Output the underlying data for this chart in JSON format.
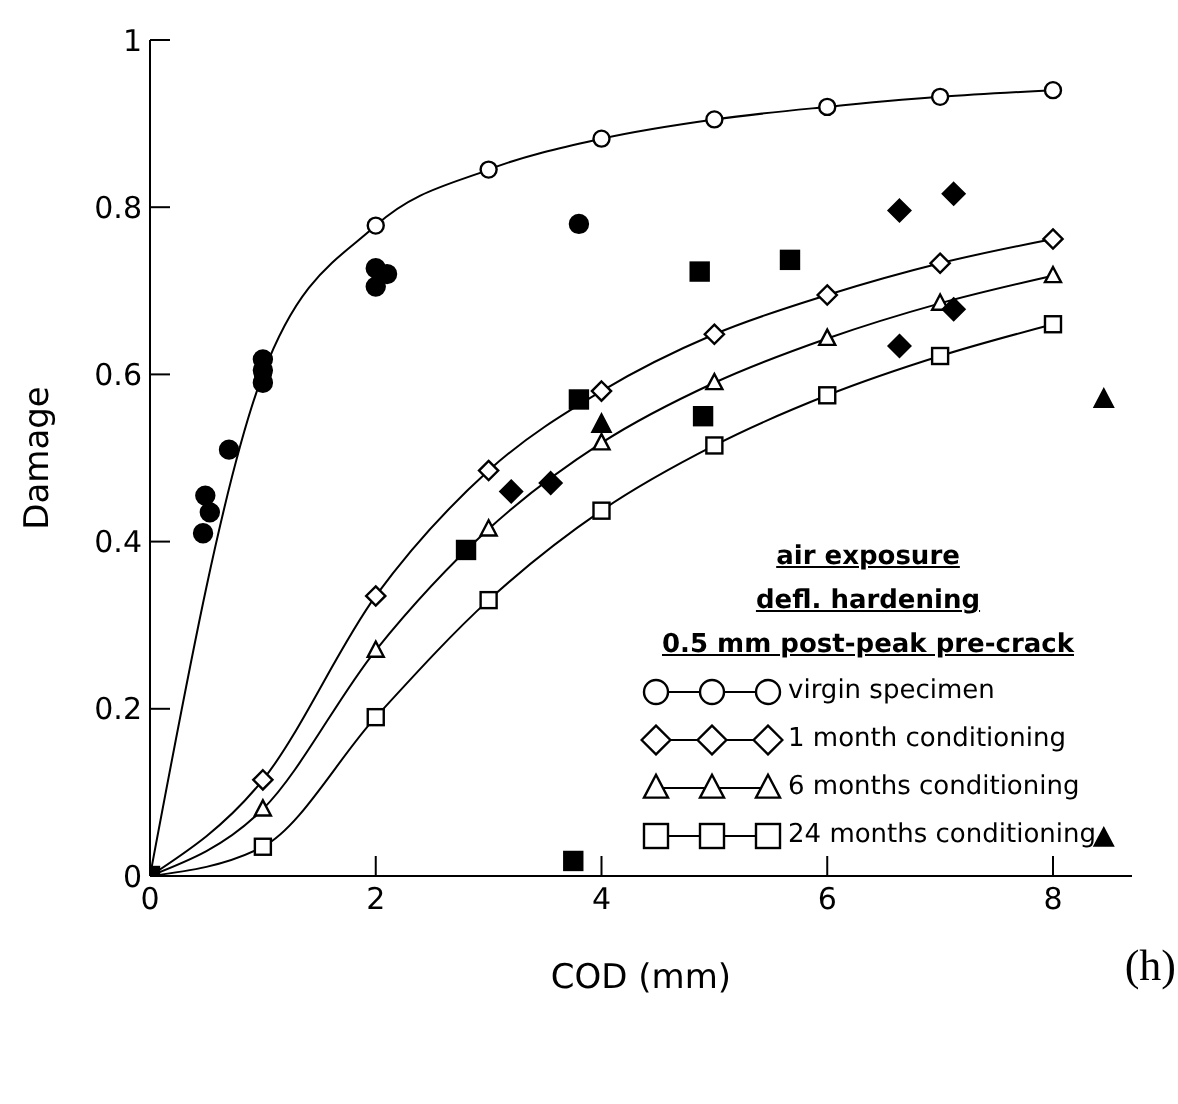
{
  "chart_data": {
    "type": "line",
    "xlabel": "COD (mm)",
    "ylabel": "Damage",
    "legend_title": "air exposure\ndefl. hardening\n0.5 mm post-peak pre-crack",
    "legend": "bottom right",
    "xlim": [
      0,
      8.7
    ],
    "ylim": [
      0,
      1
    ],
    "xticks": [
      0,
      2,
      4,
      6,
      8
    ],
    "yticks": [
      0,
      0.2,
      0.4,
      0.6,
      0.8,
      1
    ],
    "grid": false,
    "annotations": [
      "(h)"
    ],
    "series": [
      {
        "name": "virgin specimen",
        "marker": "circle",
        "color": "#000000",
        "x": [
          0,
          1,
          2,
          3,
          4,
          5,
          6,
          7,
          8
        ],
        "values": [
          0,
          0.6,
          0.778,
          0.845,
          0.882,
          0.905,
          0.92,
          0.932,
          0.94
        ]
      },
      {
        "name": "1 month conditioning",
        "marker": "diamond",
        "color": "#000000",
        "x": [
          0,
          1,
          2,
          3,
          4,
          5,
          6,
          7,
          8
        ],
        "values": [
          0,
          0.115,
          0.335,
          0.485,
          0.58,
          0.648,
          0.695,
          0.733,
          0.762
        ]
      },
      {
        "name": "6 months conditioning",
        "marker": "triangle",
        "color": "#000000",
        "x": [
          0,
          1,
          2,
          3,
          4,
          5,
          6,
          7,
          8
        ],
        "values": [
          0,
          0.08,
          0.27,
          0.415,
          0.518,
          0.59,
          0.643,
          0.685,
          0.718
        ]
      },
      {
        "name": "24 months conditioning",
        "marker": "square",
        "color": "#000000",
        "x": [
          0,
          1,
          2,
          3,
          4,
          5,
          6,
          7,
          8
        ],
        "values": [
          0,
          0.035,
          0.19,
          0.33,
          0.437,
          0.515,
          0.575,
          0.622,
          0.66
        ]
      },
      {
        "type": "scatter",
        "marker": "circle",
        "color": "#000000",
        "x": [
          0.47,
          0.49,
          0.53,
          0.7,
          1,
          1,
          1,
          2,
          2,
          2.1,
          3.8
        ],
        "values": [
          0.41,
          0.455,
          0.435,
          0.51,
          0.59,
          0.605,
          0.618,
          0.705,
          0.727,
          0.72,
          0.78
        ]
      },
      {
        "type": "scatter",
        "marker": "diamond",
        "color": "#000000",
        "x": [
          3.2,
          3.55,
          6.64,
          7.12,
          6.64,
          7.12
        ],
        "values": [
          0.46,
          0.47,
          0.796,
          0.816,
          0.634,
          0.678
        ]
      },
      {
        "type": "scatter",
        "marker": "triangle",
        "color": "#000000",
        "x": [
          4,
          8.45,
          8.45
        ],
        "values": [
          0.54,
          0.57,
          0.045
        ]
      },
      {
        "type": "scatter",
        "marker": "square",
        "color": "#000000",
        "x": [
          0,
          2.8,
          3.8,
          3.75,
          4.9,
          4.87,
          5.67
        ],
        "values": [
          0,
          0.39,
          0.57,
          0.018,
          0.55,
          0.723,
          0.737
        ]
      }
    ]
  }
}
